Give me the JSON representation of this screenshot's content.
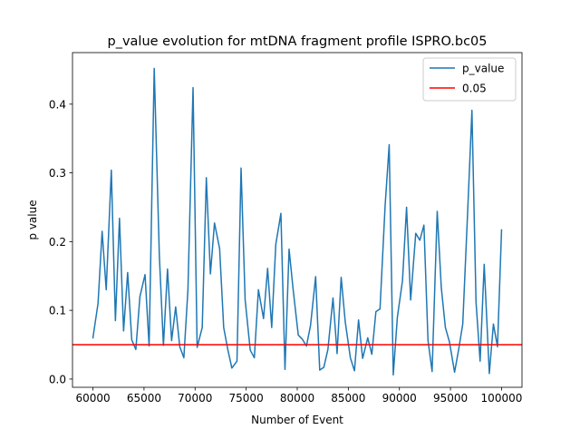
{
  "chart_data": {
    "type": "line",
    "title": "p_value evolution for mtDNA fragment profile ISPRO.bc05",
    "xlabel": "Number of Event",
    "ylabel": "p value",
    "xlim": [
      58000,
      102000
    ],
    "ylim": [
      -0.012,
      0.475
    ],
    "x_ticks": [
      60000,
      65000,
      70000,
      75000,
      80000,
      85000,
      90000,
      95000,
      100000
    ],
    "x_tick_labels": [
      "60000",
      "65000",
      "70000",
      "75000",
      "80000",
      "85000",
      "90000",
      "95000",
      "100000"
    ],
    "y_ticks": [
      0.0,
      0.1,
      0.2,
      0.3,
      0.4
    ],
    "y_tick_labels": [
      "0.0",
      "0.1",
      "0.2",
      "0.3",
      "0.4"
    ],
    "grid": false,
    "legend_position": "upper right",
    "series": [
      {
        "name": "p_value",
        "color": "#1f77b4",
        "points": [
          [
            60000,
            0.06
          ],
          [
            60500,
            0.11
          ],
          [
            60900,
            0.215
          ],
          [
            61300,
            0.13
          ],
          [
            61800,
            0.304
          ],
          [
            62200,
            0.085
          ],
          [
            62600,
            0.234
          ],
          [
            63000,
            0.07
          ],
          [
            63400,
            0.155
          ],
          [
            63800,
            0.057
          ],
          [
            64200,
            0.043
          ],
          [
            64600,
            0.12
          ],
          [
            65100,
            0.152
          ],
          [
            65500,
            0.048
          ],
          [
            66000,
            0.452
          ],
          [
            66500,
            0.18
          ],
          [
            66900,
            0.049
          ],
          [
            67300,
            0.16
          ],
          [
            67700,
            0.056
          ],
          [
            68100,
            0.105
          ],
          [
            68500,
            0.047
          ],
          [
            68900,
            0.031
          ],
          [
            69300,
            0.13
          ],
          [
            69800,
            0.424
          ],
          [
            70200,
            0.046
          ],
          [
            70700,
            0.075
          ],
          [
            71100,
            0.293
          ],
          [
            71500,
            0.153
          ],
          [
            71900,
            0.227
          ],
          [
            72400,
            0.19
          ],
          [
            72800,
            0.075
          ],
          [
            73200,
            0.043
          ],
          [
            73600,
            0.016
          ],
          [
            74100,
            0.026
          ],
          [
            74500,
            0.307
          ],
          [
            74900,
            0.115
          ],
          [
            75400,
            0.042
          ],
          [
            75800,
            0.031
          ],
          [
            76200,
            0.13
          ],
          [
            76700,
            0.088
          ],
          [
            77100,
            0.161
          ],
          [
            77500,
            0.075
          ],
          [
            77900,
            0.196
          ],
          [
            78400,
            0.241
          ],
          [
            78800,
            0.014
          ],
          [
            79200,
            0.189
          ],
          [
            79600,
            0.13
          ],
          [
            80100,
            0.064
          ],
          [
            80500,
            0.058
          ],
          [
            80900,
            0.048
          ],
          [
            81300,
            0.078
          ],
          [
            81800,
            0.149
          ],
          [
            82200,
            0.013
          ],
          [
            82600,
            0.017
          ],
          [
            83000,
            0.043
          ],
          [
            83500,
            0.118
          ],
          [
            83900,
            0.037
          ],
          [
            84300,
            0.148
          ],
          [
            84700,
            0.083
          ],
          [
            85200,
            0.031
          ],
          [
            85600,
            0.012
          ],
          [
            86000,
            0.086
          ],
          [
            86400,
            0.03
          ],
          [
            86900,
            0.06
          ],
          [
            87300,
            0.036
          ],
          [
            87700,
            0.098
          ],
          [
            88100,
            0.102
          ],
          [
            88600,
            0.252
          ],
          [
            89000,
            0.341
          ],
          [
            89400,
            0.006
          ],
          [
            89800,
            0.09
          ],
          [
            90300,
            0.143
          ],
          [
            90700,
            0.25
          ],
          [
            91100,
            0.115
          ],
          [
            91600,
            0.212
          ],
          [
            92000,
            0.202
          ],
          [
            92400,
            0.224
          ],
          [
            92800,
            0.056
          ],
          [
            93200,
            0.011
          ],
          [
            93700,
            0.244
          ],
          [
            94100,
            0.133
          ],
          [
            94500,
            0.075
          ],
          [
            94900,
            0.054
          ],
          [
            95400,
            0.01
          ],
          [
            95800,
            0.043
          ],
          [
            96200,
            0.08
          ],
          [
            96700,
            0.25
          ],
          [
            97100,
            0.391
          ],
          [
            97500,
            0.112
          ],
          [
            97900,
            0.026
          ],
          [
            98300,
            0.167
          ],
          [
            98800,
            0.008
          ],
          [
            99200,
            0.08
          ],
          [
            99600,
            0.047
          ],
          [
            100000,
            0.217
          ]
        ]
      },
      {
        "name": "0.05",
        "color": "#ff0000",
        "type": "hline",
        "y": 0.05
      }
    ]
  }
}
